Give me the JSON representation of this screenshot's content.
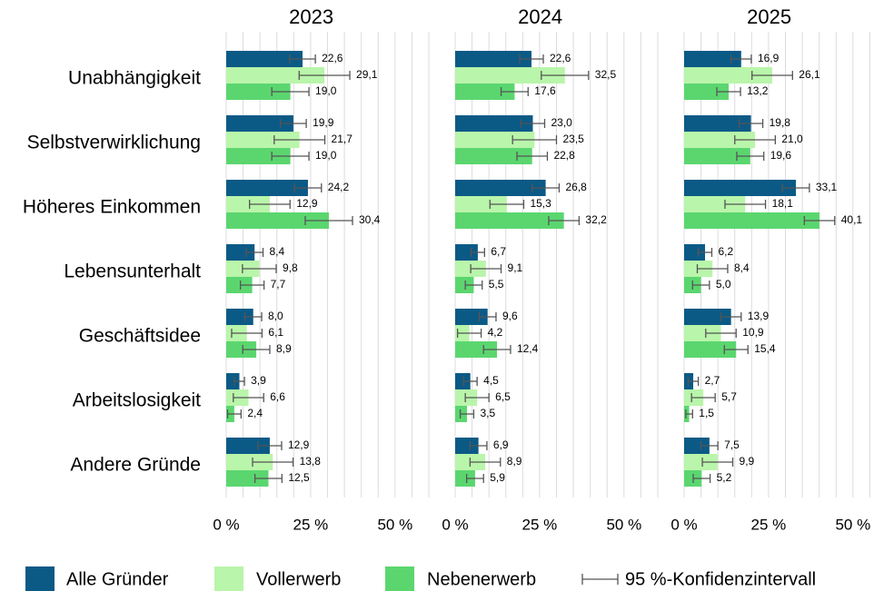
{
  "chart_data": {
    "type": "bar",
    "orientation": "horizontal",
    "categories": [
      "Unabhängigkeit",
      "Selbstverwirklichung",
      "Höheres Einkommen",
      "Lebensunterhalt",
      "Geschäftsidee",
      "Arbeitslosigkeit",
      "Andere Gründe"
    ],
    "series": [
      {
        "name": "Alle Gründer",
        "color": "#0b5a86"
      },
      {
        "name": "Vollerwerb",
        "color": "#b9f5aa"
      },
      {
        "name": "Nebenerwerb",
        "color": "#5bd66f"
      }
    ],
    "error_label": "95 %-Konfidenzintervall",
    "error_color": "#555555",
    "xlim": [
      0,
      60
    ],
    "xticks": [
      {
        "value": 0,
        "label": "0 %"
      },
      {
        "value": 25,
        "label": "25 %"
      },
      {
        "value": 50,
        "label": "50 %"
      }
    ],
    "minor_xticks": [
      5,
      10,
      15,
      20,
      30,
      35,
      40,
      45,
      55,
      60
    ],
    "grid": true,
    "legend": "bottom",
    "panels": [
      {
        "title": "2023",
        "series": [
          {
            "values": [
              22.6,
              19.9,
              24.2,
              8.4,
              8.0,
              3.9,
              12.9
            ],
            "value_labels": [
              "22,6",
              "19,9",
              "24,2",
              "8,4",
              "8,0",
              "3,9",
              "12,9"
            ],
            "errors": [
              3.8,
              3.8,
              4.0,
              2.5,
              2.5,
              1.5,
              3.5
            ]
          },
          {
            "values": [
              29.1,
              21.7,
              12.9,
              9.8,
              6.1,
              6.6,
              13.8
            ],
            "value_labels": [
              "29,1",
              "21,7",
              "12,9",
              "9,8",
              "6,1",
              "6,6",
              "13,8"
            ],
            "errors": [
              7.5,
              7.5,
              6.0,
              5.0,
              4.5,
              4.5,
              6.0
            ]
          },
          {
            "values": [
              19.0,
              19.0,
              30.4,
              7.7,
              8.9,
              2.4,
              12.5
            ],
            "value_labels": [
              "19,0",
              "19,0",
              "30,4",
              "7,7",
              "8,9",
              "2,4",
              "12,5"
            ],
            "errors": [
              5.5,
              5.5,
              7.0,
              3.5,
              4.0,
              2.0,
              4.0
            ]
          }
        ]
      },
      {
        "title": "2024",
        "series": [
          {
            "values": [
              22.6,
              23.0,
              26.8,
              6.7,
              9.6,
              4.5,
              6.9
            ],
            "value_labels": [
              "22,6",
              "23,0",
              "26,8",
              "6,7",
              "9,6",
              "4,5",
              "6,9"
            ],
            "errors": [
              3.5,
              3.5,
              4.0,
              2.0,
              2.5,
              2.0,
              2.5
            ]
          },
          {
            "values": [
              32.5,
              23.5,
              15.3,
              9.1,
              4.2,
              6.5,
              8.9
            ],
            "value_labels": [
              "32,5",
              "23,5",
              "15,3",
              "9,1",
              "4,2",
              "6,5",
              "8,9"
            ],
            "errors": [
              7.0,
              6.5,
              5.0,
              4.5,
              3.5,
              3.5,
              4.5
            ]
          },
          {
            "values": [
              17.6,
              22.8,
              32.2,
              5.5,
              12.4,
              3.5,
              5.9
            ],
            "value_labels": [
              "17,6",
              "22,8",
              "32,2",
              "5,5",
              "12,4",
              "3,5",
              "5,9"
            ],
            "errors": [
              4.0,
              4.5,
              4.5,
              2.5,
              4.0,
              2.0,
              2.5
            ]
          }
        ]
      },
      {
        "title": "2025",
        "series": [
          {
            "values": [
              16.9,
              19.8,
              33.1,
              6.2,
              13.9,
              2.7,
              7.5
            ],
            "value_labels": [
              "16,9",
              "19,8",
              "33,1",
              "6,2",
              "13,9",
              "2,7",
              "7,5"
            ],
            "errors": [
              3.0,
              3.5,
              4.0,
              2.0,
              3.0,
              1.5,
              2.5
            ]
          },
          {
            "values": [
              26.1,
              21.0,
              18.1,
              8.4,
              10.9,
              5.7,
              9.9
            ],
            "value_labels": [
              "26,1",
              "21,0",
              "18,1",
              "8,4",
              "10,9",
              "5,7",
              "9,9"
            ],
            "errors": [
              6.0,
              6.0,
              6.0,
              4.5,
              4.5,
              3.5,
              4.5
            ]
          },
          {
            "values": [
              13.2,
              19.6,
              40.1,
              5.0,
              15.4,
              1.5,
              5.2
            ],
            "value_labels": [
              "13,2",
              "19,6",
              "40,1",
              "5,0",
              "15,4",
              "1,5",
              "5,2"
            ],
            "errors": [
              3.5,
              4.0,
              4.5,
              2.5,
              3.5,
              1.0,
              2.5
            ]
          }
        ]
      }
    ]
  }
}
